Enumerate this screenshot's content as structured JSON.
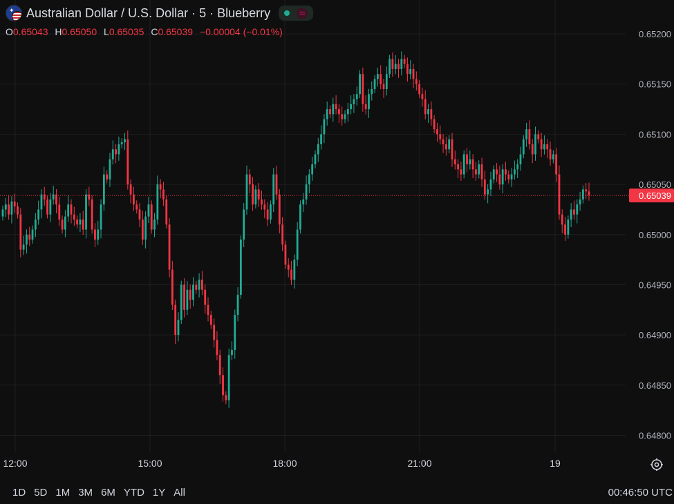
{
  "header": {
    "title": "Australian Dollar / U.S. Dollar · 5 · Blueberry",
    "flag_icon": "aud-usd-flag-icon",
    "status_icon": "market-open-dot-icon",
    "signal_icon": "wave-icon"
  },
  "ohlc": {
    "o_label": "O",
    "o_value": "0.65043",
    "h_label": "H",
    "h_value": "0.65050",
    "l_label": "L",
    "l_value": "0.65035",
    "c_label": "C",
    "c_value": "0.65039",
    "change": "−0.00004 (−0.01%)"
  },
  "colors": {
    "background": "#0f0f0f",
    "up": "#22ab94",
    "down": "#f23645",
    "grid": "#1f1f1f",
    "price_line": "#f23645"
  },
  "chart_data": {
    "type": "candlestick",
    "title": "Australian Dollar / U.S. Dollar · 5 · Blueberry",
    "ylim": [
      0.6479,
      0.6522
    ],
    "yticks": [
      "0.65200",
      "0.65150",
      "0.65100",
      "0.65050",
      "0.65000",
      "0.64950",
      "0.64900",
      "0.64850",
      "0.64800"
    ],
    "x_tick_labels": [
      "12:00",
      "15:00",
      "18:00",
      "21:00",
      "19"
    ],
    "current_price": "0.65039",
    "grid": true,
    "series": [
      {
        "interval": "5 minute",
        "close": [
          0.65025,
          0.6503,
          0.6502,
          0.65033,
          0.65028,
          0.6502,
          0.64985,
          0.6499,
          0.65,
          0.64995,
          0.65005,
          0.65015,
          0.65025,
          0.6504,
          0.65035,
          0.6502,
          0.65035,
          0.6504,
          0.6503,
          0.65015,
          0.65005,
          0.65018,
          0.6503,
          0.6502,
          0.65015,
          0.6501,
          0.65015,
          0.65005,
          0.6504,
          0.65035,
          0.65005,
          0.64995,
          0.65005,
          0.6503,
          0.6506,
          0.65055,
          0.65075,
          0.65085,
          0.6508,
          0.6509,
          0.65092,
          0.65095,
          0.6505,
          0.6504,
          0.6503,
          0.65025,
          0.65015,
          0.64995,
          0.65018,
          0.6503,
          0.65005,
          0.65015,
          0.6505,
          0.65045,
          0.65035,
          0.6501,
          0.64965,
          0.6493,
          0.649,
          0.64915,
          0.6495,
          0.64925,
          0.64945,
          0.64935,
          0.6495,
          0.64945,
          0.64955,
          0.64945,
          0.6493,
          0.6492,
          0.6491,
          0.64895,
          0.6488,
          0.6486,
          0.6484,
          0.64835,
          0.6488,
          0.64885,
          0.6492,
          0.6494,
          0.64995,
          0.65025,
          0.6506,
          0.6505,
          0.6503,
          0.65045,
          0.65035,
          0.6503,
          0.65025,
          0.65015,
          0.6503,
          0.6506,
          0.6504,
          0.6501,
          0.6499,
          0.6497,
          0.64965,
          0.64955,
          0.64975,
          0.65005,
          0.6503,
          0.65035,
          0.6505,
          0.6506,
          0.6507,
          0.6508,
          0.6509,
          0.651,
          0.65115,
          0.65125,
          0.6512,
          0.6513,
          0.65125,
          0.6512,
          0.65115,
          0.6512,
          0.65125,
          0.6513,
          0.65135,
          0.6514,
          0.6516,
          0.6513,
          0.65125,
          0.6514,
          0.65145,
          0.65155,
          0.6516,
          0.6515,
          0.65145,
          0.6516,
          0.65175,
          0.65165,
          0.6517,
          0.65165,
          0.65175,
          0.6517,
          0.6516,
          0.65165,
          0.65155,
          0.6515,
          0.6514,
          0.65135,
          0.6512,
          0.65125,
          0.65115,
          0.65105,
          0.651,
          0.65095,
          0.6509,
          0.65085,
          0.65095,
          0.65075,
          0.6507,
          0.65065,
          0.6506,
          0.6508,
          0.6507,
          0.65075,
          0.65065,
          0.6506,
          0.6507,
          0.65055,
          0.6504,
          0.65045,
          0.65055,
          0.65065,
          0.6506,
          0.6505,
          0.65065,
          0.6506,
          0.65055,
          0.6506,
          0.65065,
          0.6507,
          0.6508,
          0.65095,
          0.65105,
          0.6509,
          0.6508,
          0.651,
          0.65095,
          0.65085,
          0.6509,
          0.65085,
          0.65075,
          0.6508,
          0.6506,
          0.6502,
          0.6501,
          0.65,
          0.65015,
          0.65025,
          0.6502,
          0.6503,
          0.65035,
          0.65045,
          0.65043,
          0.65039
        ],
        "first_open": 0.65018,
        "timestamps_shown": false
      }
    ]
  },
  "bottom": {
    "ranges": [
      "1D",
      "5D",
      "1M",
      "3M",
      "6M",
      "YTD",
      "1Y",
      "All"
    ],
    "clock": "00:46:50 UTC",
    "settings_icon": "settings-icon"
  }
}
